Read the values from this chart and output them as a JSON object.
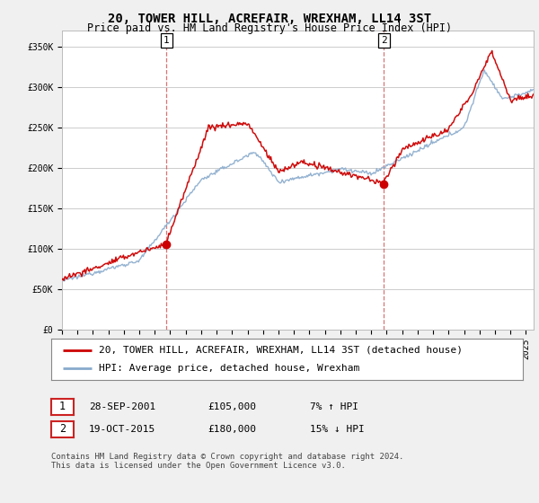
{
  "title": "20, TOWER HILL, ACREFAIR, WREXHAM, LL14 3ST",
  "subtitle": "Price paid vs. HM Land Registry's House Price Index (HPI)",
  "legend_line1": "20, TOWER HILL, ACREFAIR, WREXHAM, LL14 3ST (detached house)",
  "legend_line2": "HPI: Average price, detached house, Wrexham",
  "footnote": "Contains HM Land Registry data © Crown copyright and database right 2024.\nThis data is licensed under the Open Government Licence v3.0.",
  "transaction1_date": "28-SEP-2001",
  "transaction1_price": "£105,000",
  "transaction1_hpi": "7% ↑ HPI",
  "transaction2_date": "19-OCT-2015",
  "transaction2_price": "£180,000",
  "transaction2_hpi": "15% ↓ HPI",
  "sale1_x": 2001.75,
  "sale1_y": 105000,
  "sale2_x": 2015.8,
  "sale2_y": 180000,
  "dashed_line1_x": 2001.75,
  "dashed_line2_x": 2015.8,
  "ylim": [
    0,
    370000
  ],
  "xlim_start": 1995.0,
  "xlim_end": 2025.5,
  "red_color": "#cc0000",
  "blue_color": "#88aacc",
  "background_color": "#f0f0f0",
  "plot_bg_color": "#ffffff",
  "grid_color": "#cccccc",
  "title_fontsize": 10,
  "subtitle_fontsize": 8.5,
  "tick_fontsize": 7,
  "legend_fontsize": 8,
  "footnote_fontsize": 6.5
}
